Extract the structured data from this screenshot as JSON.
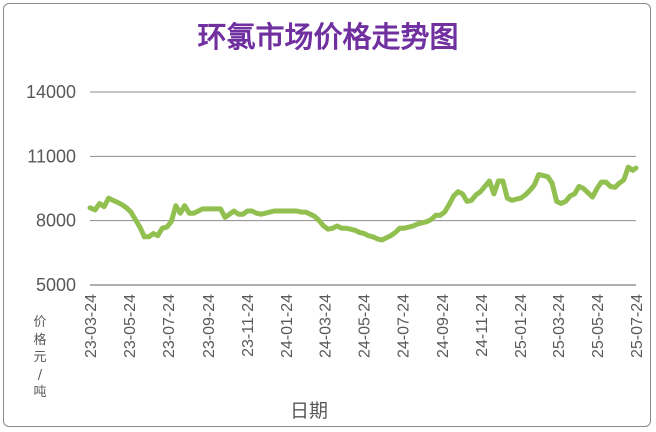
{
  "chart_data": {
    "type": "line",
    "title": "环氯市场价格走势图",
    "xlabel": "日期",
    "ylabel": "价格元/吨",
    "ylim": [
      5000,
      14000
    ],
    "yticks": [
      5000,
      8000,
      11000,
      14000
    ],
    "ytick_labels": [
      "5000",
      "8000",
      "11000",
      "14000"
    ],
    "xtick_labels": [
      "23-03-24",
      "23-05-24",
      "23-07-24",
      "23-09-24",
      "23-11-24",
      "24-01-24",
      "24-03-24",
      "24-05-24",
      "24-07-24",
      "24-09-24",
      "24-11-24",
      "25-01-24",
      "25-03-24",
      "25-05-24",
      "25-07-24"
    ],
    "grid": "horizontal",
    "line_color": "#92c050",
    "x": [
      "23-03-24",
      "23-04-01",
      "23-04-08",
      "23-04-15",
      "23-04-22",
      "23-04-29",
      "23-05-06",
      "23-05-13",
      "23-05-20",
      "23-05-27",
      "23-06-03",
      "23-06-10",
      "23-06-17",
      "23-06-24",
      "23-07-01",
      "23-07-08",
      "23-07-15",
      "23-07-22",
      "23-07-29",
      "23-08-05",
      "23-08-12",
      "23-08-19",
      "23-08-26",
      "23-09-02",
      "23-09-09",
      "23-09-16",
      "23-09-23",
      "23-09-30",
      "23-10-07",
      "23-10-14",
      "23-10-21",
      "23-10-28",
      "23-11-04",
      "23-11-11",
      "23-11-18",
      "23-11-25",
      "23-12-02",
      "23-12-09",
      "23-12-16",
      "23-12-23",
      "23-12-30",
      "24-01-06",
      "24-01-13",
      "24-01-20",
      "24-01-27",
      "24-02-03",
      "24-02-10",
      "24-02-17",
      "24-02-24",
      "24-03-02",
      "24-03-09",
      "24-03-16",
      "24-03-23",
      "24-03-30",
      "24-04-06",
      "24-04-13",
      "24-04-20",
      "24-04-27",
      "24-05-04",
      "24-05-11",
      "24-05-18",
      "24-05-25",
      "24-06-01",
      "24-06-08",
      "24-06-15",
      "24-06-22",
      "24-06-29",
      "24-07-06",
      "24-07-13",
      "24-07-20",
      "24-07-27",
      "24-08-03",
      "24-08-10",
      "24-08-17",
      "24-08-24",
      "24-08-31",
      "24-09-07",
      "24-09-14",
      "24-09-21",
      "24-09-28",
      "24-10-05",
      "24-10-12",
      "24-10-19",
      "24-10-26",
      "24-11-02",
      "24-11-09",
      "24-11-16",
      "24-11-23",
      "24-11-30",
      "24-12-07",
      "24-12-14",
      "24-12-21",
      "24-12-28",
      "25-01-04",
      "25-01-11",
      "25-01-18",
      "25-01-25",
      "25-02-01",
      "25-02-08",
      "25-02-15",
      "25-02-22",
      "25-03-01",
      "25-03-08",
      "25-03-15",
      "25-03-22",
      "25-03-29",
      "25-04-05",
      "25-04-12",
      "25-04-19",
      "25-04-26",
      "25-05-03",
      "25-05-10",
      "25-05-17",
      "25-05-24",
      "25-05-31",
      "25-06-07",
      "25-06-14",
      "25-06-21",
      "25-06-28",
      "25-07-05",
      "25-07-12",
      "25-07-19",
      "25-07-24"
    ],
    "series": [
      {
        "values": [
          8600,
          8500,
          8800,
          8650,
          9050,
          8950,
          8850,
          8750,
          8600,
          8400,
          8050,
          7700,
          7250,
          7250,
          7400,
          7300,
          7650,
          7700,
          7950,
          8700,
          8350,
          8700,
          8350,
          8350,
          8450,
          8550,
          8550,
          8550,
          8550,
          8550,
          8150,
          8300,
          8450,
          8300,
          8300,
          8450,
          8450,
          8350,
          8300,
          8350,
          8400,
          8450,
          8450,
          8450,
          8450,
          8450,
          8450,
          8400,
          8400,
          8300,
          8200,
          8000,
          7750,
          7600,
          7650,
          7750,
          7650,
          7650,
          7600,
          7550,
          7450,
          7400,
          7300,
          7250,
          7150,
          7100,
          7200,
          7300,
          7450,
          7650,
          7650,
          7700,
          7750,
          7850,
          7900,
          7950,
          8050,
          8250,
          8250,
          8400,
          8750,
          9150,
          9350,
          9250,
          8900,
          8950,
          9200,
          9350,
          9600,
          9850,
          9250,
          9850,
          9850,
          9050,
          8950,
          9000,
          9050,
          9200,
          9400,
          9650,
          10150,
          10100,
          10050,
          9750,
          8900,
          8800,
          8900,
          9150,
          9250,
          9600,
          9500,
          9300,
          9100,
          9500,
          9800,
          9800,
          9600,
          9550,
          9750,
          9900,
          10500,
          10350,
          10450
        ]
      }
    ]
  }
}
